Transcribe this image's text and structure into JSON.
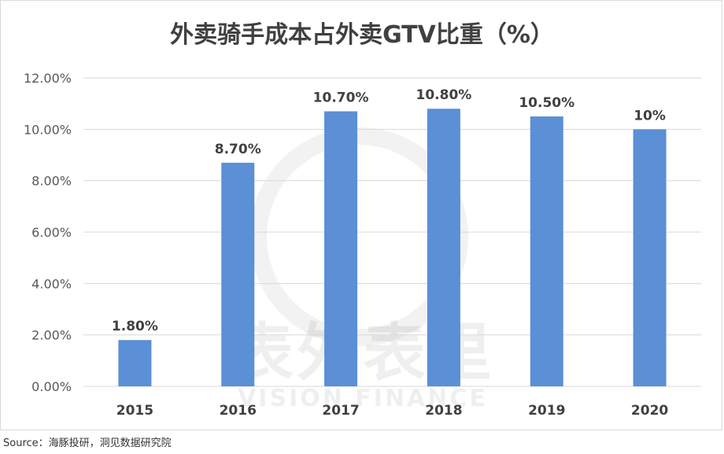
{
  "chart_data": {
    "type": "bar",
    "title": "外卖骑手成本占外卖GTV比重（%）",
    "categories": [
      "2015",
      "2016",
      "2017",
      "2018",
      "2019",
      "2020"
    ],
    "values": [
      1.8,
      8.7,
      10.7,
      10.8,
      10.5,
      10.0
    ],
    "data_labels": [
      "1.80%",
      "8.70%",
      "10.70%",
      "10.80%",
      "10.50%",
      "10%"
    ],
    "y_ticks": [
      {
        "value": 0,
        "label": "0.00%"
      },
      {
        "value": 2,
        "label": "2.00%"
      },
      {
        "value": 4,
        "label": "4.00%"
      },
      {
        "value": 6,
        "label": "6.00%"
      },
      {
        "value": 8,
        "label": "8.00%"
      },
      {
        "value": 10,
        "label": "10.00%"
      },
      {
        "value": 12,
        "label": "12.00%"
      }
    ],
    "ylim": [
      0,
      12
    ],
    "xlabel": "",
    "ylabel": "",
    "grid": true,
    "legend": "none",
    "bar_color": "#5b8fd6",
    "grid_color": "#d9d9d9"
  },
  "watermark": {
    "text_cn": "表外表里",
    "text_en": "VISION FINANCE"
  },
  "source": "Source：海豚投研，洞见数据研究院"
}
